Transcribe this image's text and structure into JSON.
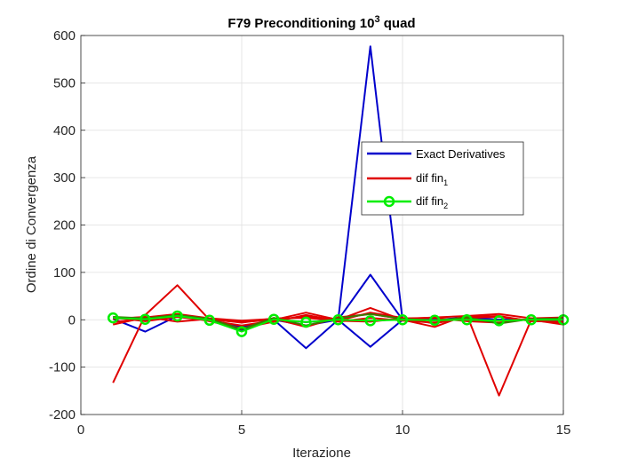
{
  "chart_data": {
    "type": "line",
    "title": "F79 Preconditioning 10",
    "title_sup": "3",
    "title_suffix": " quad",
    "xlabel": "Iterazione",
    "ylabel": "Ordine di Convergenza",
    "xlim": [
      0,
      15
    ],
    "ylim": [
      -200,
      600
    ],
    "xticks": [
      0,
      5,
      10,
      15
    ],
    "yticks": [
      -200,
      -100,
      0,
      100,
      200,
      300,
      400,
      500,
      600
    ],
    "grid": true,
    "legend_position": "inside-right",
    "legend": [
      {
        "label": "Exact Derivatives",
        "sub": "",
        "color": "#0000cc",
        "marker": "none"
      },
      {
        "label": "dif fin",
        "sub": "1",
        "color": "#e00000",
        "marker": "none"
      },
      {
        "label": "dif fin",
        "sub": "2",
        "color": "#00ee00",
        "marker": "circle"
      }
    ],
    "series": [
      {
        "group": "exact",
        "color": "#0000cc",
        "x": [
          1,
          2,
          3,
          4,
          5,
          6,
          7,
          8,
          9,
          10,
          11,
          12,
          13,
          14,
          15
        ],
        "y": [
          2,
          -25,
          8,
          0,
          -22,
          0,
          -60,
          0,
          577,
          0,
          0,
          0,
          0,
          0,
          0
        ]
      },
      {
        "group": "exact",
        "color": "#0000cc",
        "x": [
          1,
          2,
          3,
          4,
          5,
          6,
          7,
          8,
          9,
          10,
          11,
          12,
          13,
          14,
          15
        ],
        "y": [
          3,
          5,
          10,
          0,
          -20,
          0,
          -12,
          0,
          95,
          0,
          0,
          5,
          0,
          0,
          0
        ]
      },
      {
        "group": "exact",
        "color": "#0000cc",
        "x": [
          1,
          2,
          3,
          4,
          5,
          6,
          7,
          8,
          9,
          10,
          11,
          12,
          13,
          14,
          15
        ],
        "y": [
          4,
          0,
          6,
          0,
          -15,
          0,
          -5,
          0,
          -57,
          0,
          0,
          0,
          0,
          0,
          0
        ]
      },
      {
        "group": "dif_fin_1",
        "color": "#e00000",
        "x": [
          1,
          2,
          3,
          4,
          5,
          6,
          7,
          8,
          9,
          10,
          11,
          12,
          13,
          14,
          15
        ],
        "y": [
          -133,
          10,
          73,
          0,
          -5,
          0,
          15,
          0,
          25,
          0,
          -15,
          10,
          -160,
          0,
          -10
        ]
      },
      {
        "group": "dif_fin_1",
        "color": "#e00000",
        "x": [
          1,
          2,
          3,
          4,
          5,
          6,
          7,
          8,
          9,
          10,
          11,
          12,
          13,
          14,
          15
        ],
        "y": [
          -10,
          5,
          12,
          3,
          -2,
          2,
          -15,
          5,
          12,
          2,
          5,
          8,
          12,
          3,
          5
        ]
      },
      {
        "group": "dif_fin_1",
        "color": "#e00000",
        "x": [
          1,
          2,
          3,
          4,
          5,
          6,
          7,
          8,
          9,
          10,
          11,
          12,
          13,
          14,
          15
        ],
        "y": [
          5,
          -3,
          6,
          -2,
          -12,
          -2,
          8,
          -4,
          4,
          -2,
          -6,
          4,
          6,
          -2,
          -6
        ]
      },
      {
        "group": "dif_fin_1",
        "color": "#e00000",
        "x": [
          1,
          2,
          3,
          4,
          5,
          6,
          7,
          8,
          9,
          10,
          11,
          12,
          13,
          14,
          15
        ],
        "y": [
          2,
          6,
          -4,
          2,
          -6,
          3,
          4,
          -2,
          -4,
          3,
          4,
          -3,
          -6,
          2,
          3
        ]
      },
      {
        "group": "dif_fin_1",
        "color": "#e00000",
        "x": [
          1,
          2,
          3,
          4,
          5,
          6,
          7,
          8,
          9,
          10,
          11,
          12,
          13,
          14,
          15
        ],
        "y": [
          -5,
          2,
          10,
          -3,
          -18,
          -4,
          10,
          -2,
          15,
          4,
          -8,
          6,
          8,
          -3,
          -4
        ]
      },
      {
        "group": "dif_fin_2",
        "color": "#3c7a00",
        "x": [
          1,
          2,
          3,
          4,
          5,
          6,
          7,
          8,
          9,
          10,
          11,
          12,
          13,
          14,
          15
        ],
        "y": [
          6,
          3,
          10,
          2,
          -20,
          4,
          -12,
          3,
          12,
          2,
          -2,
          5,
          -8,
          2,
          3
        ]
      },
      {
        "group": "dif_fin_2",
        "color": "#00ee00",
        "x": [
          1,
          2,
          3,
          4,
          5,
          6,
          7,
          8,
          9,
          10,
          11,
          12,
          13,
          14,
          15
        ],
        "y": [
          4,
          1,
          8,
          -1,
          -25,
          1,
          -5,
          0,
          -2,
          0,
          -1,
          0,
          -2,
          0,
          0
        ]
      }
    ],
    "marker_series_index": 9
  }
}
